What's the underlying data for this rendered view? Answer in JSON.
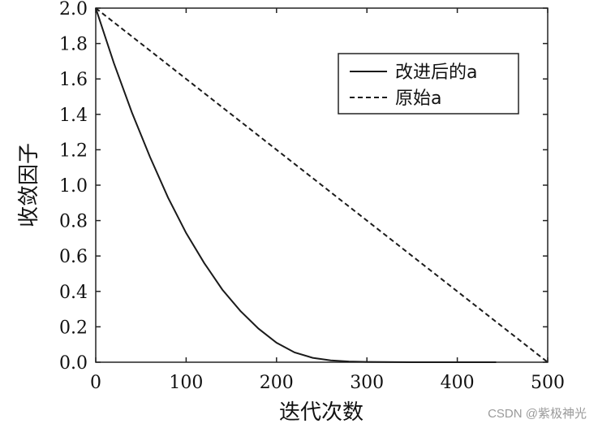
{
  "chart_data": {
    "type": "line",
    "title": "",
    "xlabel": "迭代次数",
    "ylabel": "收敛因子",
    "xlim": [
      0,
      500
    ],
    "ylim": [
      0,
      2.0
    ],
    "x_ticks": [
      "0",
      "100",
      "200",
      "300",
      "400",
      "500"
    ],
    "y_ticks": [
      "0.0",
      "0.2",
      "0.4",
      "0.6",
      "0.8",
      "1.0",
      "1.2",
      "1.4",
      "1.6",
      "1.8",
      "2.0"
    ],
    "grid": false,
    "legend_position": "top-right",
    "series": [
      {
        "name": "改进后的a",
        "style": "solid",
        "x": [
          0,
          20,
          40,
          60,
          80,
          100,
          120,
          140,
          160,
          180,
          200,
          220,
          240,
          260,
          280,
          300,
          350,
          400,
          443
        ],
        "y": [
          2.0,
          1.69,
          1.41,
          1.16,
          0.93,
          0.73,
          0.56,
          0.41,
          0.29,
          0.19,
          0.11,
          0.055,
          0.025,
          0.01,
          0.004,
          0.002,
          0.0,
          0.0,
          0.0
        ]
      },
      {
        "name": "原始a",
        "style": "dashed",
        "x": [
          0,
          500
        ],
        "y": [
          2.0,
          0.0
        ]
      }
    ]
  },
  "watermark": "CSDN @紫极神光",
  "colors": {
    "line": "#1a1a1a",
    "axis": "#222222",
    "watermark": "#9a9a9a"
  }
}
